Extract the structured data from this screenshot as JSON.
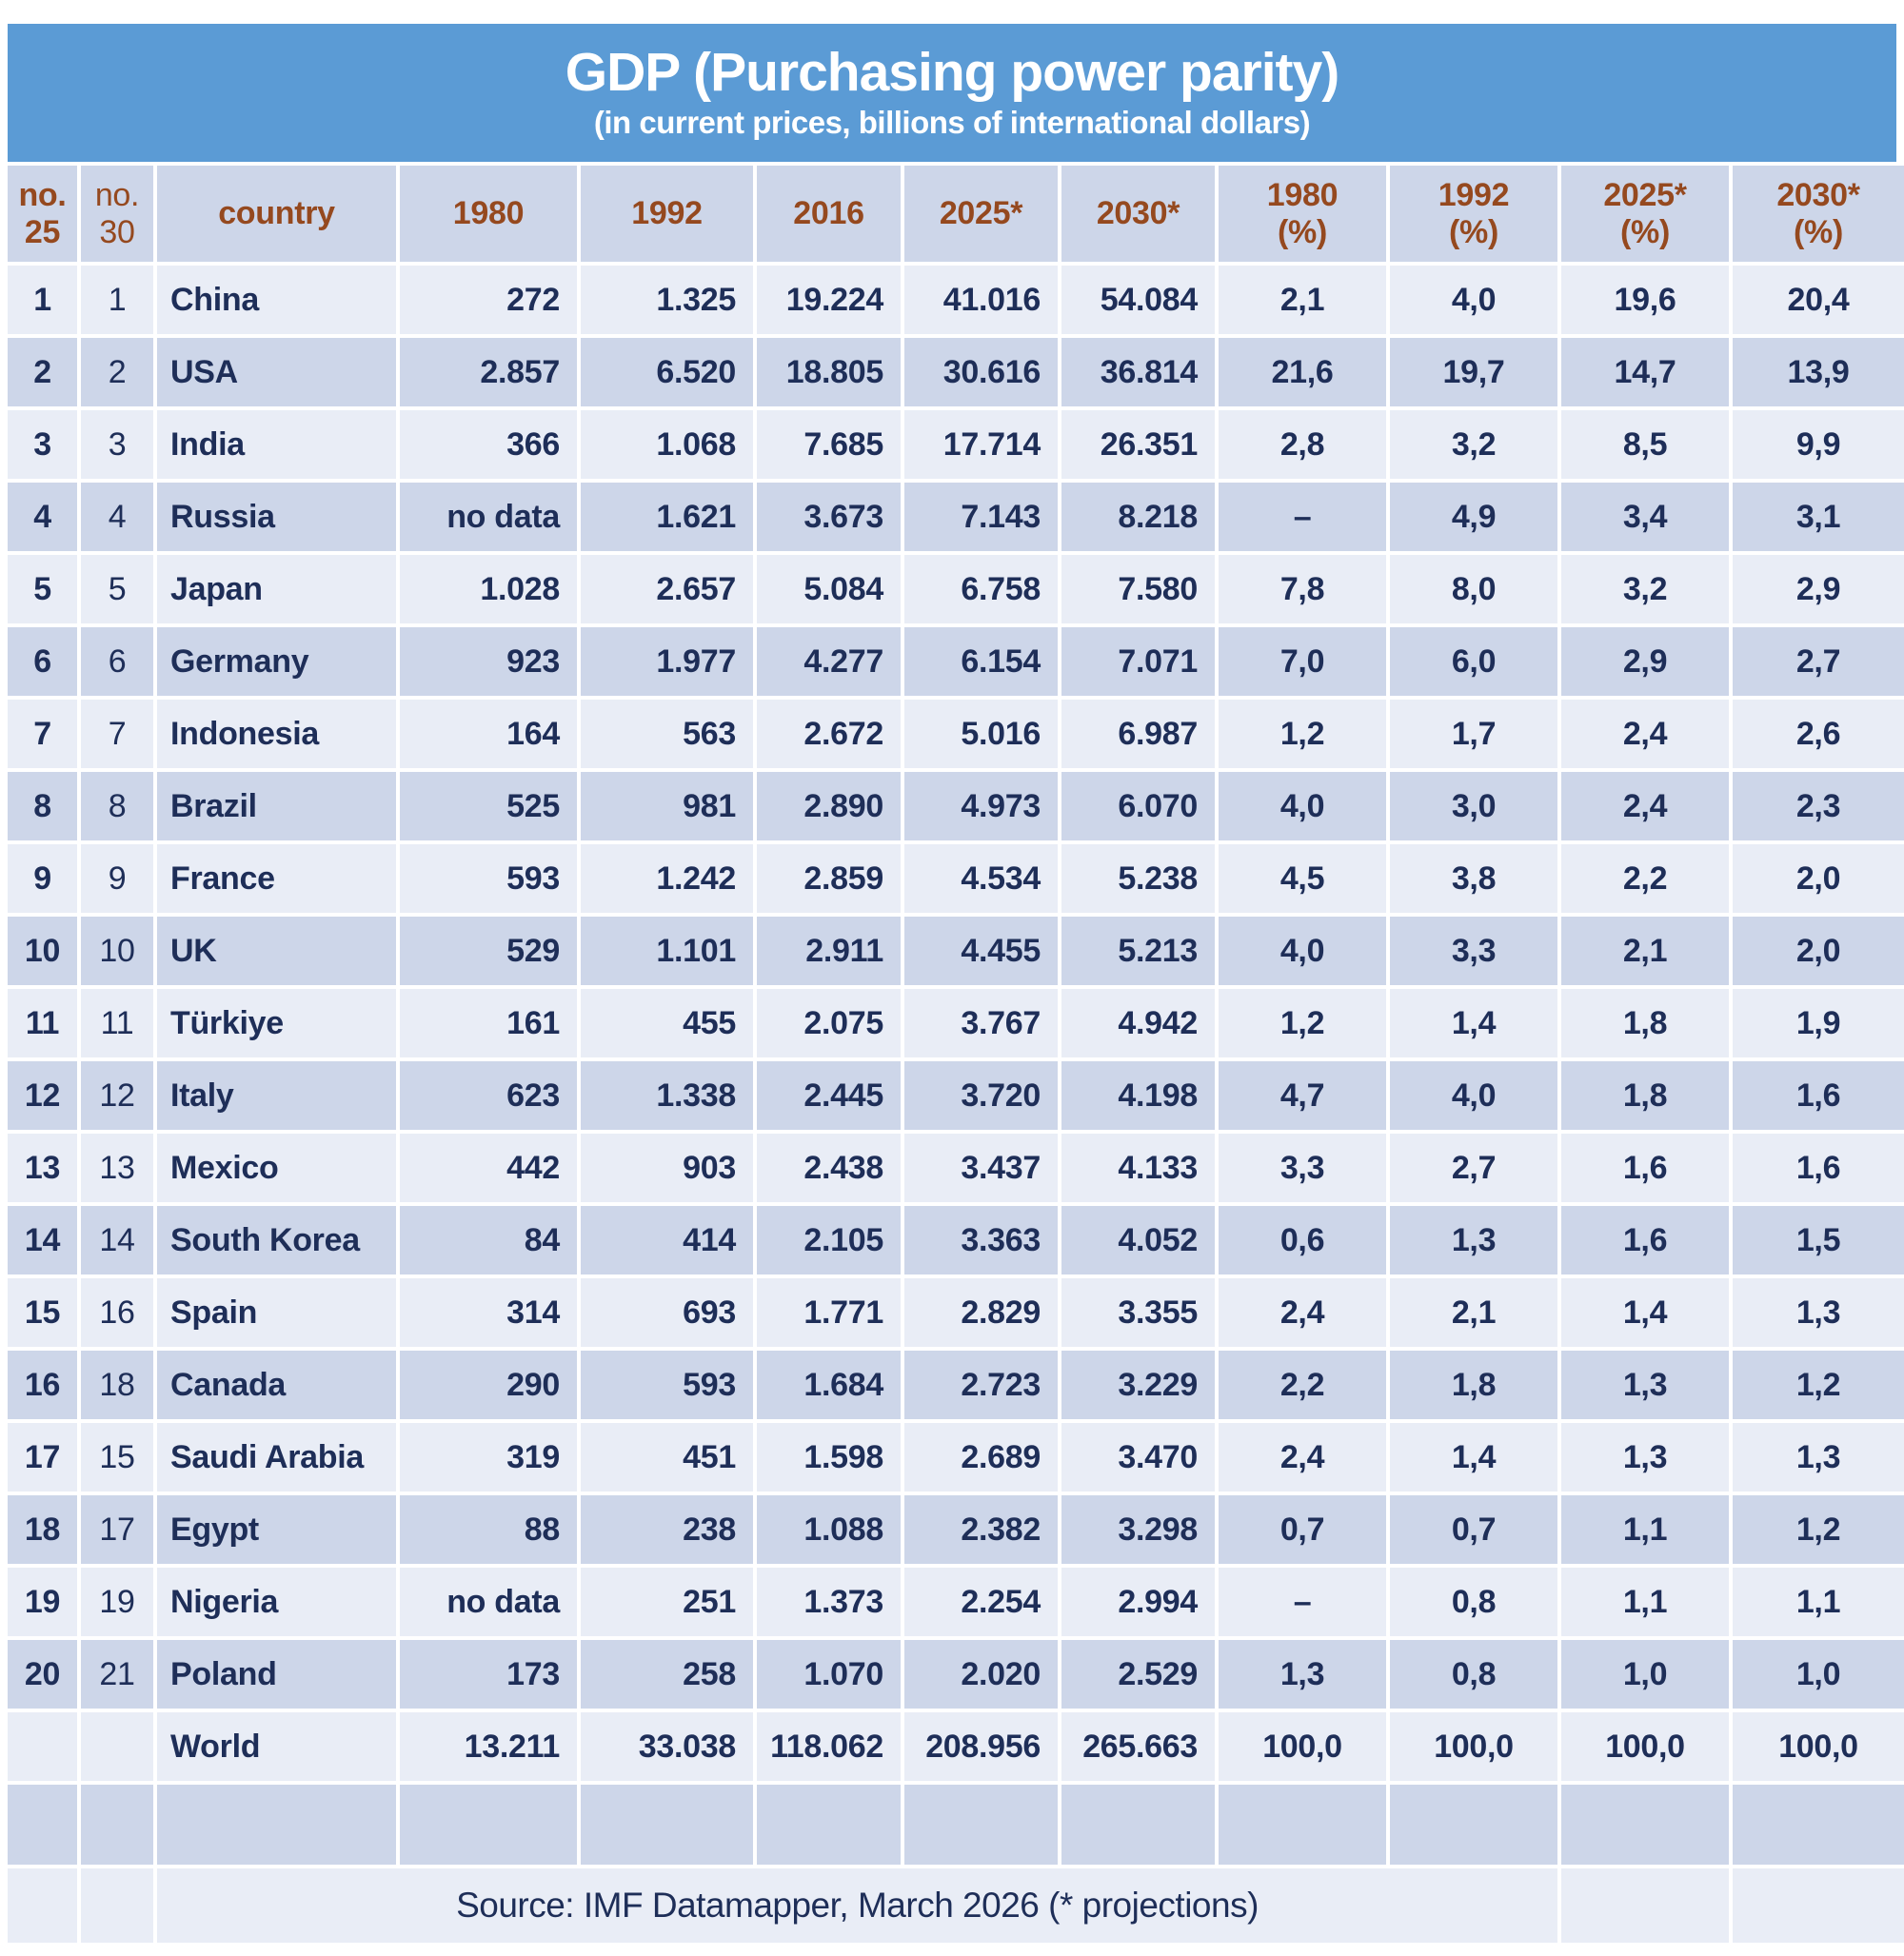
{
  "title_banner": {
    "title": "GDP (Purchasing power parity)",
    "subtitle": "(in current prices, billions of international dollars)"
  },
  "chart_data": {
    "type": "table",
    "title": "GDP (Purchasing power parity)",
    "subtitle": "(in current prices, billions of international dollars)",
    "columns": [
      "no.\n25",
      "no.\n30",
      "country",
      "1980",
      "1992",
      "2016",
      "2025*",
      "2030*",
      "1980\n(%)",
      "1992\n(%)",
      "2025*\n(%)",
      "2030*\n(%)"
    ],
    "rows": [
      [
        "1",
        "1",
        "China",
        "272",
        "1.325",
        "19.224",
        "41.016",
        "54.084",
        "2,1",
        "4,0",
        "19,6",
        "20,4"
      ],
      [
        "2",
        "2",
        "USA",
        "2.857",
        "6.520",
        "18.805",
        "30.616",
        "36.814",
        "21,6",
        "19,7",
        "14,7",
        "13,9"
      ],
      [
        "3",
        "3",
        "India",
        "366",
        "1.068",
        "7.685",
        "17.714",
        "26.351",
        "2,8",
        "3,2",
        "8,5",
        "9,9"
      ],
      [
        "4",
        "4",
        "Russia",
        "no data",
        "1.621",
        "3.673",
        "7.143",
        "8.218",
        "–",
        "4,9",
        "3,4",
        "3,1"
      ],
      [
        "5",
        "5",
        "Japan",
        "1.028",
        "2.657",
        "5.084",
        "6.758",
        "7.580",
        "7,8",
        "8,0",
        "3,2",
        "2,9"
      ],
      [
        "6",
        "6",
        "Germany",
        "923",
        "1.977",
        "4.277",
        "6.154",
        "7.071",
        "7,0",
        "6,0",
        "2,9",
        "2,7"
      ],
      [
        "7",
        "7",
        "Indonesia",
        "164",
        "563",
        "2.672",
        "5.016",
        "6.987",
        "1,2",
        "1,7",
        "2,4",
        "2,6"
      ],
      [
        "8",
        "8",
        "Brazil",
        "525",
        "981",
        "2.890",
        "4.973",
        "6.070",
        "4,0",
        "3,0",
        "2,4",
        "2,3"
      ],
      [
        "9",
        "9",
        "France",
        "593",
        "1.242",
        "2.859",
        "4.534",
        "5.238",
        "4,5",
        "3,8",
        "2,2",
        "2,0"
      ],
      [
        "10",
        "10",
        "UK",
        "529",
        "1.101",
        "2.911",
        "4.455",
        "5.213",
        "4,0",
        "3,3",
        "2,1",
        "2,0"
      ],
      [
        "11",
        "11",
        "Türkiye",
        "161",
        "455",
        "2.075",
        "3.767",
        "4.942",
        "1,2",
        "1,4",
        "1,8",
        "1,9"
      ],
      [
        "12",
        "12",
        "Italy",
        "623",
        "1.338",
        "2.445",
        "3.720",
        "4.198",
        "4,7",
        "4,0",
        "1,8",
        "1,6"
      ],
      [
        "13",
        "13",
        "Mexico",
        "442",
        "903",
        "2.438",
        "3.437",
        "4.133",
        "3,3",
        "2,7",
        "1,6",
        "1,6"
      ],
      [
        "14",
        "14",
        "South Korea",
        "84",
        "414",
        "2.105",
        "3.363",
        "4.052",
        "0,6",
        "1,3",
        "1,6",
        "1,5"
      ],
      [
        "15",
        "16",
        "Spain",
        "314",
        "693",
        "1.771",
        "2.829",
        "3.355",
        "2,4",
        "2,1",
        "1,4",
        "1,3"
      ],
      [
        "16",
        "18",
        "Canada",
        "290",
        "593",
        "1.684",
        "2.723",
        "3.229",
        "2,2",
        "1,8",
        "1,3",
        "1,2"
      ],
      [
        "17",
        "15",
        "Saudi Arabia",
        "319",
        "451",
        "1.598",
        "2.689",
        "3.470",
        "2,4",
        "1,4",
        "1,3",
        "1,3"
      ],
      [
        "18",
        "17",
        "Egypt",
        "88",
        "238",
        "1.088",
        "2.382",
        "3.298",
        "0,7",
        "0,7",
        "1,1",
        "1,2"
      ],
      [
        "19",
        "19",
        "Nigeria",
        "no data",
        "251",
        "1.373",
        "2.254",
        "2.994",
        "–",
        "0,8",
        "1,1",
        "1,1"
      ],
      [
        "20",
        "21",
        "Poland",
        "173",
        "258",
        "1.070",
        "2.020",
        "2.529",
        "1,3",
        "0,8",
        "1,0",
        "1,0"
      ]
    ],
    "world_row": [
      "",
      "",
      "World",
      "13.211",
      "33.038",
      "118.062",
      "208.956",
      "265.663",
      "100,0",
      "100,0",
      "100,0",
      "100,0"
    ],
    "source_note": "Source: IMF Datamapper, March 2026 (* projections)"
  },
  "colors": {
    "banner_blue": "#5b9bd5",
    "header_text_brown": "#95491f",
    "body_text_navy": "#1e2e58",
    "row_light": "#e9edf6",
    "row_dark": "#cdd6e9"
  }
}
